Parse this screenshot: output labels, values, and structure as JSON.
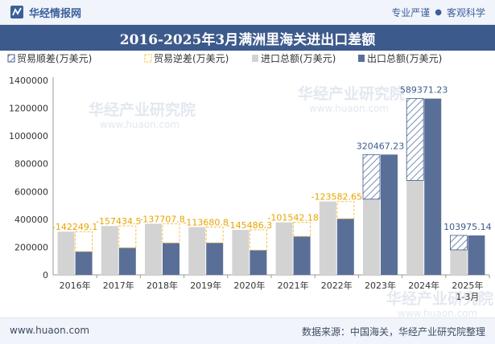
{
  "header": {
    "brand": "华经情报网",
    "right_1": "专业严谨",
    "right_2": "客观科学"
  },
  "title": "2016-2025年3月满洲里海关进出口差额",
  "footer": {
    "site": "www.huaon.com",
    "source": "数据来源：中国海关，华经产业研究院整理"
  },
  "watermark": {
    "text": "华经产业研究院",
    "url": "www.huaon.com"
  },
  "chart_data": {
    "type": "bar",
    "categories": [
      "2016年",
      "2017年",
      "2018年",
      "2019年",
      "2020年",
      "2021年",
      "2022年",
      "2023年",
      "2024年",
      "2025年\n1-3月"
    ],
    "series": [
      {
        "name": "贸易顺差(万美元)",
        "values": [
          null,
          null,
          null,
          null,
          null,
          null,
          null,
          320467.23,
          589371.23,
          103975.14
        ],
        "color": "#3d5a8c",
        "style": "hatched"
      },
      {
        "name": "贸易逆差(万美元)",
        "values": [
          -142249.1,
          -157434.5,
          -137707.8,
          -113680.8,
          -145486.3,
          -101542.18,
          -123582.65,
          null,
          null,
          null
        ],
        "color": "#f5c242",
        "style": "dashed"
      },
      {
        "name": "进口总额(万美元)",
        "values": [
          311000,
          352000,
          368000,
          344000,
          324000,
          378000,
          528000,
          545000,
          680000,
          180000
        ],
        "color": "#d3d3d3"
      },
      {
        "name": "出口总额(万美元)",
        "values": [
          168000,
          195000,
          230000,
          231000,
          178000,
          277000,
          404000,
          866000,
          1269000,
          284000
        ],
        "color": "#5a6f98"
      }
    ],
    "data_labels": [
      "-142249.1",
      "-157434.5",
      "-137707.8",
      "-113680.8",
      "-145486.3",
      "-101542.18",
      "-123582.65",
      "320467.23",
      "589371.23",
      "103975.14"
    ],
    "yticks": [
      "0",
      "200000",
      "400000",
      "600000",
      "800000",
      "1000000",
      "1200000",
      "1400000"
    ],
    "ylim": [
      0,
      1400000
    ],
    "legend_position": "top-left",
    "grid": false
  }
}
